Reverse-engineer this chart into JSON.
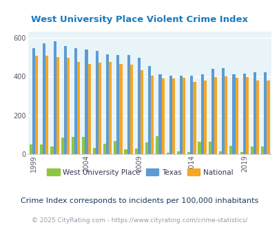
{
  "title": "West University Place Violent Crime Index",
  "subtitle": "Crime Index corresponds to incidents per 100,000 inhabitants",
  "footer": "© 2025 CityRating.com - https://www.cityrating.com/crime-statistics/",
  "years": [
    1999,
    2000,
    2001,
    2002,
    2003,
    2004,
    2005,
    2006,
    2007,
    2008,
    2009,
    2010,
    2011,
    2012,
    2013,
    2014,
    2015,
    2016,
    2017,
    2018,
    2019,
    2020,
    2021
  ],
  "west_univ": [
    52,
    52,
    42,
    85,
    90,
    90,
    32,
    55,
    70,
    25,
    28,
    60,
    95,
    10,
    15,
    12,
    65,
    65,
    15,
    43,
    12,
    42,
    42
  ],
  "texas": [
    545,
    570,
    580,
    555,
    545,
    540,
    530,
    515,
    510,
    510,
    495,
    455,
    410,
    405,
    405,
    405,
    410,
    440,
    445,
    410,
    415,
    422,
    422
  ],
  "national": [
    507,
    507,
    500,
    495,
    475,
    465,
    473,
    475,
    465,
    460,
    432,
    405,
    390,
    390,
    395,
    372,
    381,
    398,
    401,
    395,
    398,
    380,
    378
  ],
  "ylim": [
    0,
    630
  ],
  "yticks": [
    0,
    200,
    400,
    600
  ],
  "title_color": "#1a7abf",
  "subtitle_color": "#1a3a5c",
  "footer_color": "#9999aa",
  "bar_color_city": "#8dc63f",
  "bar_color_state": "#5b9bd5",
  "bar_color_national": "#f5a623",
  "bg_color": "#e8f4f8",
  "grid_color": "#ffffff",
  "legend_labels": [
    "West University Place",
    "Texas",
    "National"
  ],
  "legend_text_color": "#333355",
  "bar_width": 0.27,
  "tick_label_years": [
    1999,
    2004,
    2009,
    2014,
    2019
  ],
  "figsize": [
    4.06,
    3.3
  ],
  "dpi": 100
}
